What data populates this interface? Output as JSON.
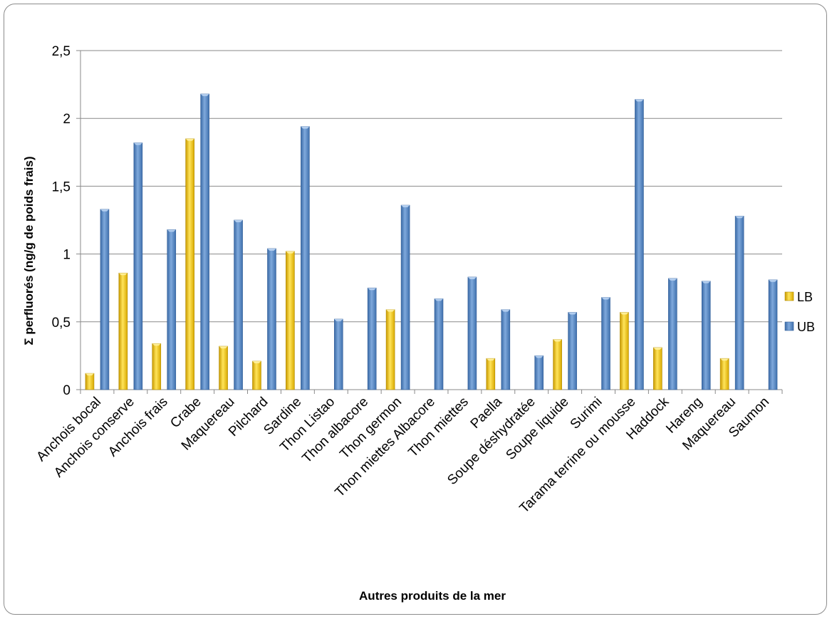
{
  "chart_data": {
    "type": "bar",
    "title": "",
    "xlabel": "Autres produits de la mer",
    "ylabel": "Σ  perfluorés (ng/g de poids frais)",
    "ylim": [
      0,
      2.5
    ],
    "yticks": [
      "0",
      "0,5",
      "1",
      "1,5",
      "2",
      "2,5"
    ],
    "ytick_values": [
      0,
      0.5,
      1,
      1.5,
      2,
      2.5
    ],
    "grid": true,
    "legend_position": "right",
    "categories": [
      "Anchois bocal",
      "Anchois conserve",
      "Anchois frais",
      "Crabe",
      "Maquereau",
      "Pilchard",
      "Sardine",
      "Thon Listao",
      "Thon albacore",
      "Thon germon",
      "Thon miettes Albacore",
      "Thon miettes",
      "Paella",
      "Soupe déshydratée",
      "Soupe liquide",
      "Surimi",
      "Tarama terrine ou mousse",
      "Haddock",
      "Hareng",
      "Maquereau",
      "Saumon"
    ],
    "series": [
      {
        "name": "LB",
        "color": "#f5c400",
        "values": [
          0.12,
          0.86,
          0.34,
          1.85,
          0.32,
          0.21,
          1.02,
          0,
          0,
          0.59,
          0,
          0,
          0.23,
          0,
          0.37,
          0,
          0.57,
          0.31,
          0,
          0.23,
          0
        ]
      },
      {
        "name": "UB",
        "color": "#4f81bd",
        "values": [
          1.33,
          1.82,
          1.18,
          2.18,
          1.25,
          1.04,
          1.94,
          0.52,
          0.75,
          1.36,
          0.67,
          0.83,
          0.59,
          0.25,
          0.57,
          0.68,
          2.14,
          0.82,
          0.8,
          1.28,
          0.81
        ]
      }
    ]
  }
}
